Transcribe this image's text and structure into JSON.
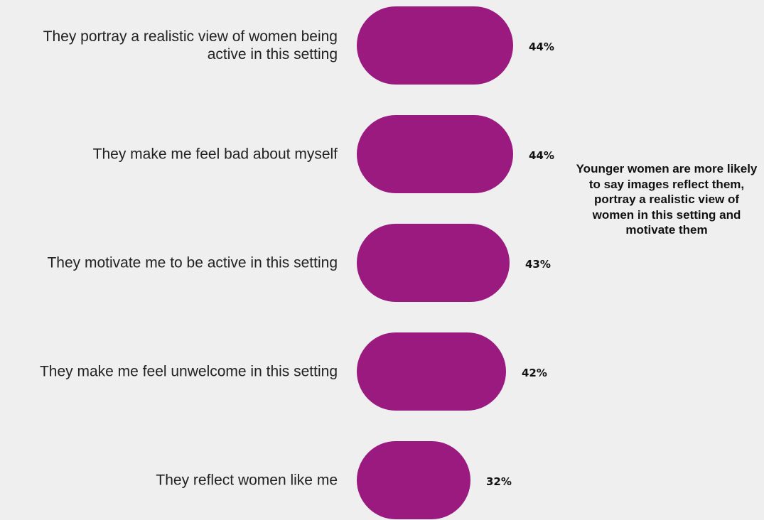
{
  "chart_data": {
    "type": "bar",
    "orientation": "horizontal",
    "categories": [
      "They portray a realistic view of women being active in this setting",
      "They make me feel bad about myself",
      "They motivate me to be active in this setting",
      "They make me feel unwelcome in this setting",
      "They reflect women like me"
    ],
    "values": [
      44,
      44,
      43,
      42,
      32
    ],
    "value_labels": [
      "44%",
      "44%",
      "43%",
      "42%",
      "32%"
    ],
    "unit": "%",
    "grid": false,
    "legend": "none",
    "bar_color": "#9a1a80",
    "annotation": "Younger women are more likely to say images reflect them, portray a realistic view of women in this setting and motivate them"
  }
}
